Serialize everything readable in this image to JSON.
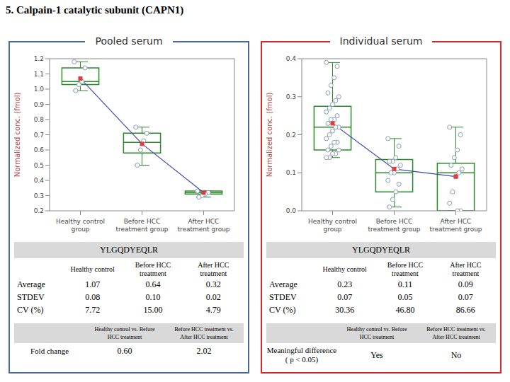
{
  "title": "5. Calpain-1 catalytic subunit (CAPN1)",
  "chart_data": [
    {
      "type": "box",
      "title": "Pooled serum",
      "ylabel": "Normalized conc. (fmol)",
      "categories": [
        "Healthy control group",
        "Before HCC treatment group",
        "After HCC treatment group"
      ],
      "ylim": [
        0.2,
        1.2
      ],
      "yticks": [
        0.2,
        0.3,
        0.4,
        0.5,
        0.6,
        0.7,
        0.8,
        0.9,
        {
          "value": 1,
          "label": "1.0"
        },
        1.1,
        1.2
      ],
      "series": [
        {
          "type": "box",
          "color": "#2a8a2a",
          "values": [
            {
              "min": 0.99,
              "q1": 1.03,
              "median": 1.05,
              "q3": 1.14,
              "max": 1.18
            },
            {
              "min": 0.5,
              "q1": 0.58,
              "median": 0.65,
              "q3": 0.71,
              "max": 0.75
            },
            {
              "min": 0.29,
              "q1": 0.31,
              "median": 0.32,
              "q3": 0.33,
              "max": 0.33
            }
          ]
        },
        {
          "type": "scatter",
          "color": "#8a9db5",
          "marker": "circle",
          "values": [
            [
              1.18,
              1.14,
              1.05,
              1.03,
              0.99
            ],
            [
              0.75,
              0.71,
              0.66,
              0.6,
              0.5
            ],
            [
              0.33,
              0.32,
              0.31,
              0.3,
              0.29
            ]
          ]
        },
        {
          "type": "line",
          "color": "#3b4bb0",
          "marker": "square",
          "values": [
            1.07,
            0.64,
            0.32
          ]
        }
      ]
    },
    {
      "type": "box",
      "title": "Individual serum",
      "ylabel": "Normalized conc. (fmol)",
      "categories": [
        "Healthy control group",
        "Before HCC treatment group",
        "After HCC treatment group"
      ],
      "ylim": [
        0,
        0.4
      ],
      "yticks": [
        {
          "value": 0,
          "label": "0.0"
        },
        0.1,
        0.2,
        0.3,
        0.4
      ],
      "series": [
        {
          "type": "box",
          "color": "#2a8a2a",
          "values": [
            {
              "min": 0.14,
              "q1": 0.16,
              "median": 0.22,
              "q3": 0.275,
              "max": 0.39
            },
            {
              "min": 0.01,
              "q1": 0.05,
              "median": 0.1,
              "q3": 0.135,
              "max": 0.19
            },
            {
              "min": 0,
              "q1": 0,
              "median": 0.1,
              "q3": 0.125,
              "max": 0.22
            }
          ]
        },
        {
          "type": "scatter",
          "color": "#8a9db5",
          "marker": "circle",
          "values": [
            [
              0.39,
              0.38,
              0.35,
              0.33,
              0.31,
              0.3,
              0.29,
              0.28,
              0.27,
              0.26,
              0.25,
              0.24,
              0.24,
              0.23,
              0.22,
              0.22,
              0.21,
              0.2,
              0.19,
              0.18,
              0.18,
              0.17,
              0.16,
              0.16,
              0.15,
              0.15,
              0.14,
              0.14
            ],
            [
              0.19,
              0.17,
              0.14,
              0.13,
              0.13,
              0.12,
              0.11,
              0.1,
              0.1,
              0.08,
              0.07,
              0.05,
              0.03,
              0.01
            ],
            [
              0.22,
              0.2,
              0.16,
              0.14,
              0.12,
              0.11,
              0.1,
              0.09,
              0.05,
              0.02,
              0,
              0
            ]
          ]
        },
        {
          "type": "line",
          "color": "#3b4bb0",
          "marker": "square",
          "values": [
            0.23,
            0.11,
            0.09
          ]
        }
      ]
    }
  ],
  "tables": [
    {
      "peptide": "YLGQDYEQLR",
      "columns": [
        "Healthy control",
        "Before HCC treatment",
        "After HCC treatment"
      ],
      "rows": [
        {
          "label": "Average",
          "cells": [
            "1.07",
            "0.64",
            "0.32"
          ]
        },
        {
          "label": "STDEV",
          "cells": [
            "0.08",
            "0.10",
            "0.02"
          ]
        },
        {
          "label": "CV (%)",
          "cells": [
            "7.72",
            "15.00",
            "4.79"
          ]
        }
      ],
      "comparison": {
        "columns": [
          "Healthy control vs. Before HCC treatment",
          "Before HCC treatment vs. After HCC treatment"
        ],
        "label": "Fold change",
        "cells": [
          "0.60",
          "2.02"
        ]
      }
    },
    {
      "peptide": "YLGQDYEQLR",
      "columns": [
        "Healthy control",
        "Before HCC treatment",
        "After HCC treatment"
      ],
      "rows": [
        {
          "label": "Average",
          "cells": [
            "0.23",
            "0.11",
            "0.09"
          ]
        },
        {
          "label": "STDEV",
          "cells": [
            "0.07",
            "0.05",
            "0.07"
          ]
        },
        {
          "label": "CV (%)",
          "cells": [
            "30.36",
            "46.80",
            "86.66"
          ]
        }
      ],
      "comparison": {
        "columns": [
          "Healthy control vs. Before HCC treatment",
          "Before HCC treatment vs. After HCC treatment"
        ],
        "label": "Meaningful difference ( p < 0.05)",
        "cells": [
          "Yes",
          "No"
        ]
      }
    }
  ]
}
